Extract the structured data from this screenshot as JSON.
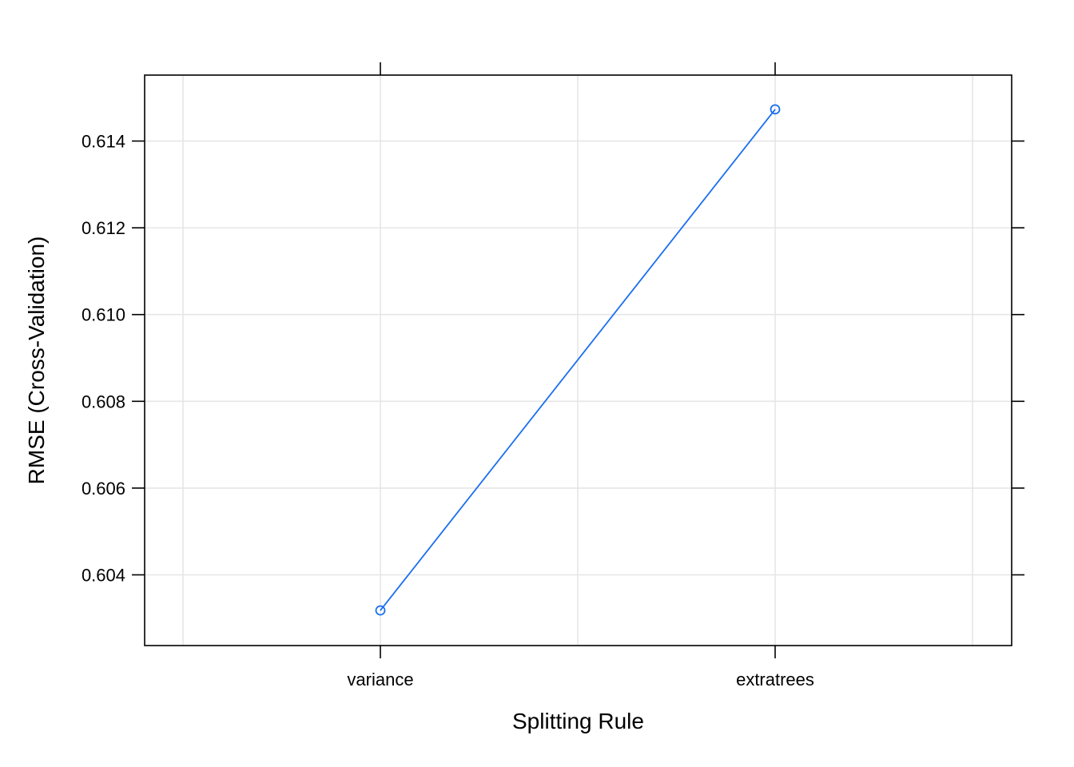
{
  "chart_data": {
    "type": "line",
    "title": "",
    "xlabel": "Splitting Rule",
    "ylabel": "RMSE (Cross-Validation)",
    "categories": [
      "variance",
      "extratrees"
    ],
    "series": [
      {
        "values": [
          0.60318,
          0.61473
        ],
        "color": "#1a6ef0",
        "marker": "open-circle"
      }
    ],
    "ylim": [
      0.60237,
      0.61552
    ],
    "yticks": [
      0.604,
      0.606,
      0.608,
      0.61,
      0.612,
      0.614
    ],
    "ytick_labels": [
      "0.604",
      "0.606",
      "0.608",
      "0.610",
      "0.612",
      "0.614"
    ],
    "grid": true,
    "grid_color": "#e6e6e6",
    "legend": "none"
  }
}
